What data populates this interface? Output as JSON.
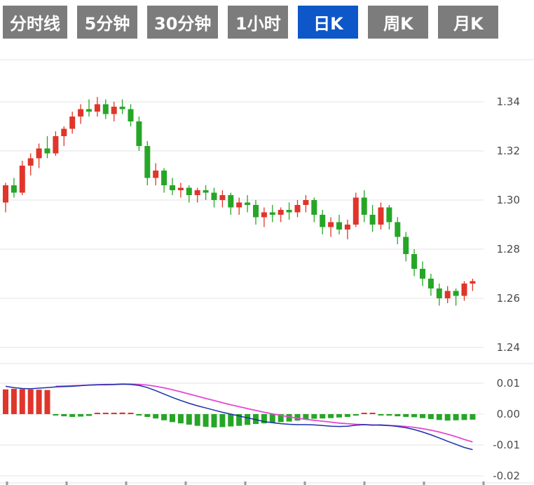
{
  "tabs": [
    {
      "label": "分时线",
      "active": false
    },
    {
      "label": "5分钟",
      "active": false
    },
    {
      "label": "30分钟",
      "active": false
    },
    {
      "label": "1小时",
      "active": false
    },
    {
      "label": "日K",
      "active": true
    },
    {
      "label": "周K",
      "active": false
    },
    {
      "label": "月K",
      "active": false
    }
  ],
  "colors": {
    "up": "#e0352b",
    "down": "#26a626",
    "tab_bg": "#7c7c7c",
    "tab_active_bg": "#0d57c8",
    "tab_text": "#ffffff",
    "grid": "#e3e3e3",
    "axis_text": "#4a4a4a",
    "dif_line": "#1b2fa8",
    "dea_line": "#e548d5",
    "background": "#ffffff"
  },
  "chart_data": {
    "type": "candlestick",
    "indicator": "MACD",
    "title": "",
    "legend_position": "none",
    "grid": true,
    "price_axis": {
      "side": "right",
      "ticks": [
        {
          "label": "1.34",
          "value": 1.34
        },
        {
          "label": "1.32",
          "value": 1.32
        },
        {
          "label": "1.30",
          "value": 1.3
        },
        {
          "label": "1.28",
          "value": 1.28
        },
        {
          "label": "1.26",
          "value": 1.26
        },
        {
          "label": "1.24",
          "value": 1.24
        }
      ],
      "range": [
        1.2357,
        1.3571
      ]
    },
    "macd_axis": {
      "side": "right",
      "ticks": [
        {
          "label": "0.01",
          "value": 0.01
        },
        {
          "label": "0.00",
          "value": 0.0
        },
        {
          "label": "-0.01",
          "value": -0.01
        },
        {
          "label": "-0.02",
          "value": -0.02
        }
      ],
      "range": [
        -0.023,
        0.012
      ]
    },
    "candles": [
      [
        1.299,
        1.307,
        1.295,
        1.306
      ],
      [
        1.306,
        1.309,
        1.301,
        1.303
      ],
      [
        1.303,
        1.316,
        1.302,
        1.314
      ],
      [
        1.314,
        1.319,
        1.31,
        1.317
      ],
      [
        1.317,
        1.323,
        1.313,
        1.321
      ],
      [
        1.321,
        1.326,
        1.317,
        1.319
      ],
      [
        1.319,
        1.328,
        1.318,
        1.326
      ],
      [
        1.326,
        1.33,
        1.322,
        1.329
      ],
      [
        1.329,
        1.336,
        1.327,
        1.334
      ],
      [
        1.334,
        1.339,
        1.331,
        1.337
      ],
      [
        1.337,
        1.341,
        1.334,
        1.336
      ],
      [
        1.336,
        1.342,
        1.334,
        1.339
      ],
      [
        1.339,
        1.341,
        1.333,
        1.335
      ],
      [
        1.335,
        1.34,
        1.332,
        1.338
      ],
      [
        1.338,
        1.341,
        1.335,
        1.337
      ],
      [
        1.337,
        1.339,
        1.33,
        1.332
      ],
      [
        1.332,
        1.334,
        1.32,
        1.322
      ],
      [
        1.322,
        1.324,
        1.306,
        1.309
      ],
      [
        1.309,
        1.315,
        1.306,
        1.312
      ],
      [
        1.312,
        1.313,
        1.303,
        1.306
      ],
      [
        1.306,
        1.309,
        1.302,
        1.304
      ],
      [
        1.304,
        1.307,
        1.301,
        1.305
      ],
      [
        1.305,
        1.306,
        1.299,
        1.302
      ],
      [
        1.302,
        1.305,
        1.299,
        1.304
      ],
      [
        1.304,
        1.306,
        1.3,
        1.303
      ],
      [
        1.303,
        1.305,
        1.297,
        1.3
      ],
      [
        1.3,
        1.304,
        1.297,
        1.302
      ],
      [
        1.302,
        1.303,
        1.294,
        1.297
      ],
      [
        1.297,
        1.301,
        1.294,
        1.299
      ],
      [
        1.299,
        1.302,
        1.295,
        1.298
      ],
      [
        1.298,
        1.3,
        1.29,
        1.293
      ],
      [
        1.293,
        1.297,
        1.289,
        1.295
      ],
      [
        1.295,
        1.298,
        1.291,
        1.294
      ],
      [
        1.294,
        1.297,
        1.291,
        1.296
      ],
      [
        1.296,
        1.299,
        1.292,
        1.295
      ],
      [
        1.295,
        1.3,
        1.293,
        1.298
      ],
      [
        1.298,
        1.302,
        1.295,
        1.3
      ],
      [
        1.3,
        1.301,
        1.291,
        1.294
      ],
      [
        1.294,
        1.296,
        1.286,
        1.289
      ],
      [
        1.289,
        1.293,
        1.285,
        1.291
      ],
      [
        1.291,
        1.294,
        1.286,
        1.288
      ],
      [
        1.288,
        1.292,
        1.284,
        1.29
      ],
      [
        1.29,
        1.303,
        1.289,
        1.301
      ],
      [
        1.301,
        1.304,
        1.291,
        1.294
      ],
      [
        1.294,
        1.298,
        1.287,
        1.29
      ],
      [
        1.29,
        1.299,
        1.288,
        1.297
      ],
      [
        1.297,
        1.298,
        1.288,
        1.291
      ],
      [
        1.291,
        1.293,
        1.282,
        1.285
      ],
      [
        1.285,
        1.287,
        1.275,
        1.278
      ],
      [
        1.278,
        1.28,
        1.269,
        1.272
      ],
      [
        1.272,
        1.275,
        1.265,
        1.268
      ],
      [
        1.268,
        1.27,
        1.261,
        1.264
      ],
      [
        1.264,
        1.266,
        1.257,
        1.26
      ],
      [
        1.26,
        1.265,
        1.258,
        1.263
      ],
      [
        1.263,
        1.264,
        1.257,
        1.261
      ],
      [
        1.261,
        1.267,
        1.259,
        1.266
      ],
      [
        1.266,
        1.268,
        1.263,
        1.267
      ]
    ],
    "macd": {
      "histogram": [
        0.008,
        0.0082,
        0.0081,
        0.008,
        0.0079,
        0.0078,
        -0.0004,
        -0.0007,
        -0.0009,
        -0.0008,
        -0.0006,
        0.0003,
        0.0004,
        0.0004,
        0.0005,
        0.0003,
        -0.0004,
        -0.0009,
        -0.0014,
        -0.002,
        -0.0026,
        -0.003,
        -0.0034,
        -0.0038,
        -0.0041,
        -0.0043,
        -0.0042,
        -0.004,
        -0.0038,
        -0.0035,
        -0.0032,
        -0.003,
        -0.0028,
        -0.0026,
        -0.0024,
        -0.0021,
        -0.0018,
        -0.0015,
        -0.0014,
        -0.0013,
        -0.0011,
        -0.0009,
        -0.0005,
        0.0003,
        0.0004,
        -0.0003,
        -0.0005,
        -0.0007,
        -0.0009,
        -0.001,
        -0.0013,
        -0.0016,
        -0.0019,
        -0.0021,
        -0.002,
        -0.0019,
        -0.0018
      ],
      "dif": [
        0.009,
        0.0086,
        0.0083,
        0.0082,
        0.0084,
        0.0086,
        0.0088,
        0.0089,
        0.009,
        0.0092,
        0.0094,
        0.0095,
        0.0095,
        0.0096,
        0.0097,
        0.0096,
        0.0093,
        0.0086,
        0.0076,
        0.0065,
        0.0054,
        0.0044,
        0.0035,
        0.0027,
        0.002,
        0.0013,
        0.0006,
        0.0,
        -0.0006,
        -0.0012,
        -0.0018,
        -0.0024,
        -0.0028,
        -0.0031,
        -0.0033,
        -0.0034,
        -0.0034,
        -0.0035,
        -0.0037,
        -0.0039,
        -0.004,
        -0.0039,
        -0.0036,
        -0.0034,
        -0.0036,
        -0.0035,
        -0.0037,
        -0.004,
        -0.0044,
        -0.005,
        -0.0058,
        -0.0067,
        -0.0077,
        -0.0088,
        -0.0098,
        -0.0108,
        -0.0115
      ],
      "dea": [
        null,
        null,
        null,
        null,
        null,
        null,
        0.009,
        0.0091,
        0.0092,
        0.0093,
        0.0094,
        0.0095,
        0.0096,
        0.0096,
        0.0097,
        0.0097,
        0.0096,
        0.0094,
        0.009,
        0.0085,
        0.0079,
        0.0072,
        0.0065,
        0.0058,
        0.0051,
        0.0044,
        0.0037,
        0.003,
        0.0024,
        0.0018,
        0.0012,
        0.0006,
        0.0001,
        -0.0004,
        -0.0009,
        -0.0013,
        -0.0017,
        -0.002,
        -0.0023,
        -0.0026,
        -0.0029,
        -0.0031,
        -0.0033,
        -0.0034,
        -0.0035,
        -0.0036,
        -0.0037,
        -0.0038,
        -0.004,
        -0.0043,
        -0.0047,
        -0.0052,
        -0.0058,
        -0.0065,
        -0.0073,
        -0.0082,
        -0.009
      ]
    }
  }
}
